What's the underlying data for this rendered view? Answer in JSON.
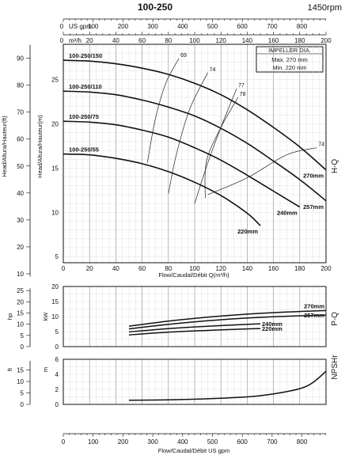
{
  "header": {
    "title": "100-250",
    "speed": "1450rpm",
    "top_gpm_label": "US gpm",
    "top_m3h_label": "m³/h",
    "top_gpm_ticks": [
      "0",
      "100",
      "200",
      "300",
      "400",
      "500",
      "600",
      "700",
      "800"
    ],
    "top_m3h_ticks": [
      "0",
      "20",
      "40",
      "60",
      "80",
      "100",
      "120",
      "140",
      "160",
      "180",
      "200"
    ]
  },
  "panels": {
    "hq": {
      "side_label": "H-Q",
      "ft_axis_label": "Head/Altura/Hauteur(ft)",
      "m_axis_label": "Head/Altura/Hauteur(m)",
      "x_axis_label": "Flow/Caudal/Débit Q(m³/h)",
      "ft_ticks": [
        "10",
        "20",
        "30",
        "40",
        "50",
        "60",
        "70",
        "80",
        "90"
      ],
      "m_ticks": [
        "5",
        "10",
        "15",
        "20",
        "25"
      ],
      "x_ticks": [
        "0",
        "20",
        "40",
        "60",
        "80",
        "100",
        "120",
        "140",
        "160",
        "180",
        "200"
      ],
      "legend": {
        "title": "IMPELLER DIA.",
        "max": "Max. 270 mm",
        "min": "Min. 220 mm"
      }
    },
    "pq": {
      "side_label": "P-Q",
      "hp_axis_label": "hp",
      "kw_axis_label": "kW",
      "hp_ticks": [
        "0",
        "5",
        "10",
        "15",
        "20",
        "25"
      ],
      "kw_ticks": [
        "0",
        "5",
        "10",
        "15",
        "20"
      ]
    },
    "npsh": {
      "side_label": "NPSHr",
      "ft_axis_label": "ft",
      "m_axis_label": "m",
      "ft_ticks": [
        "0",
        "5",
        "10",
        "15"
      ],
      "m_ticks": [
        "0",
        "2",
        "4",
        "6"
      ]
    },
    "bottom": {
      "x_axis_label": "Flow/Caudal/Débit  US gpm",
      "gpm_ticks": [
        "0",
        "100",
        "200",
        "300",
        "400",
        "500",
        "600",
        "700",
        "800"
      ]
    }
  },
  "chart_data": [
    {
      "type": "line",
      "name": "H-Q",
      "xlabel": "Flow/Caudal/Débit Q(m³/h)",
      "ylabel": "Head/Altura/Hauteur(m)",
      "xlim": [
        0,
        200
      ],
      "ylim": [
        4.3,
        29
      ],
      "series": [
        {
          "name": "100-250/150",
          "x": [
            0,
            20,
            40,
            60,
            80,
            100,
            120,
            140,
            160,
            180,
            200
          ],
          "y": [
            27.2,
            27.1,
            26.8,
            26.3,
            25.6,
            24.6,
            23.3,
            21.6,
            19.6,
            17.4,
            14.8
          ]
        },
        {
          "name": "100-250/110",
          "x": [
            0,
            20,
            40,
            60,
            80,
            100,
            120,
            140,
            160,
            180,
            200
          ],
          "y": [
            23.7,
            23.6,
            23.3,
            22.7,
            21.9,
            20.9,
            19.5,
            17.8,
            15.8,
            13.7,
            11.3
          ]
        },
        {
          "name": "100-250/75",
          "x": [
            0,
            20,
            40,
            60,
            80,
            100,
            120,
            140,
            160,
            180
          ],
          "y": [
            20.3,
            20.2,
            19.9,
            19.3,
            18.5,
            17.3,
            15.9,
            14.2,
            12.4,
            10.6
          ]
        },
        {
          "name": "100-250/55",
          "x": [
            0,
            20,
            40,
            60,
            80,
            100,
            120,
            140,
            150
          ],
          "y": [
            16.6,
            16.5,
            16.1,
            15.5,
            14.6,
            13.4,
            11.9,
            9.9,
            8.5
          ]
        }
      ],
      "curve_labels": [
        "270mm",
        "257mm",
        "240mm",
        "220mm"
      ],
      "efficiency": [
        {
          "label": "69",
          "points": [
            [
              64,
              15.6
            ],
            [
              70,
              20.5
            ],
            [
              78,
              24.6
            ],
            [
              88,
              27.4
            ]
          ]
        },
        {
          "label": "74",
          "points": [
            [
              80,
              12.1
            ],
            [
              86,
              16.5
            ],
            [
              96,
              21.6
            ],
            [
              110,
              25.8
            ]
          ]
        },
        {
          "label": "77",
          "points": [
            [
              100,
              11.0
            ],
            [
              110,
              15.6
            ],
            [
              121,
              20.0
            ],
            [
              132,
              24.0
            ]
          ]
        },
        {
          "label": "78",
          "points": [
            [
              108,
              11.6
            ],
            [
              109,
              15.8
            ],
            [
              120,
              19.6
            ],
            [
              133,
              23.0
            ]
          ]
        },
        {
          "label": "74",
          "points": [
            [
              110,
              12.0
            ],
            [
              140,
              13.9
            ],
            [
              170,
              16.5
            ],
            [
              193,
              17.3
            ]
          ]
        }
      ]
    },
    {
      "type": "line",
      "name": "P-Q",
      "ylabel": "kW",
      "xlim": [
        0,
        200
      ],
      "ylim": [
        0,
        20
      ],
      "series": [
        {
          "name": "270mm",
          "x": [
            50,
            80,
            110,
            140,
            170,
            200
          ],
          "y": [
            6.8,
            8.5,
            9.8,
            10.8,
            11.5,
            12.0
          ]
        },
        {
          "name": "257mm",
          "x": [
            50,
            80,
            110,
            140,
            170,
            200
          ],
          "y": [
            5.9,
            7.4,
            8.6,
            9.5,
            10.1,
            10.5
          ]
        },
        {
          "name": "240mm",
          "x": [
            50,
            80,
            110,
            140,
            150
          ],
          "y": [
            4.9,
            6.0,
            6.8,
            7.4,
            7.6
          ]
        },
        {
          "name": "220mm",
          "x": [
            50,
            80,
            110,
            140,
            150
          ],
          "y": [
            3.9,
            4.8,
            5.4,
            5.9,
            6.0
          ]
        }
      ]
    },
    {
      "type": "line",
      "name": "NPSHr",
      "ylabel": "m",
      "xlim": [
        0,
        200
      ],
      "ylim": [
        0,
        6
      ],
      "series": [
        {
          "name": "NPSHr",
          "x": [
            50,
            80,
            110,
            140,
            160,
            180,
            190,
            200
          ],
          "y": [
            0.55,
            0.6,
            0.75,
            1.0,
            1.4,
            2.1,
            2.9,
            4.4
          ]
        }
      ]
    }
  ]
}
